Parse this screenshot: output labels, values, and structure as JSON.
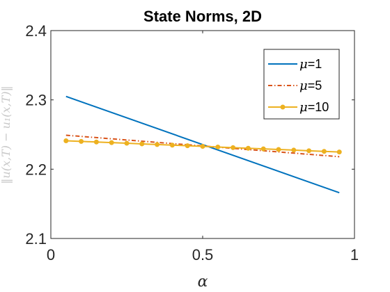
{
  "chart_data": {
    "type": "line",
    "title": "State Norms, 2D",
    "xlabel": "α",
    "ylabel": "‖u(x,T) − u₁(x,T)‖",
    "xlim": [
      0,
      1
    ],
    "ylim": [
      2.1,
      2.4
    ],
    "xticks": [
      "0",
      "0.5",
      "1"
    ],
    "yticks": [
      "2.1",
      "2.2",
      "2.3",
      "2.4"
    ],
    "grid": false,
    "legend_position": "top-right",
    "series": [
      {
        "name": "μ=1",
        "legend_symbol": "μ",
        "legend_value": "=1",
        "color": "#0072BD",
        "line_style": "solid",
        "marker": "none",
        "x": [
          0.05,
          0.95
        ],
        "y": [
          2.305,
          2.166
        ]
      },
      {
        "name": "μ=5",
        "legend_symbol": "μ",
        "legend_value": "=5",
        "color": "#D95319",
        "line_style": "dashdot",
        "marker": "none",
        "x": [
          0.05,
          0.95
        ],
        "y": [
          2.249,
          2.218
        ]
      },
      {
        "name": "μ=10",
        "legend_symbol": "μ",
        "legend_value": "=10",
        "color": "#EDB120",
        "line_style": "solid",
        "marker": "circle",
        "x": [
          0.05,
          0.1,
          0.15,
          0.2,
          0.25,
          0.3,
          0.35,
          0.4,
          0.45,
          0.5,
          0.55,
          0.6,
          0.65,
          0.7,
          0.75,
          0.8,
          0.85,
          0.9,
          0.95
        ],
        "y": [
          2.241,
          2.2401,
          2.2392,
          2.2383,
          2.2374,
          2.2365,
          2.2356,
          2.2347,
          2.2338,
          2.2329,
          2.232,
          2.2311,
          2.2302,
          2.2293,
          2.2284,
          2.2275,
          2.2266,
          2.2257,
          2.2248
        ]
      }
    ]
  }
}
